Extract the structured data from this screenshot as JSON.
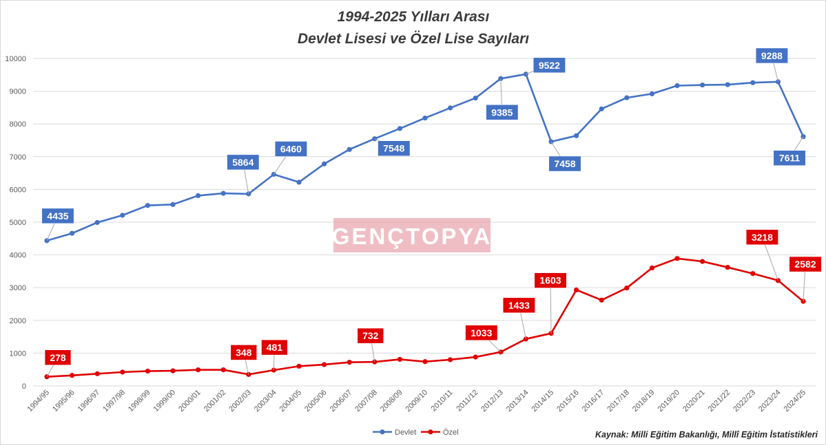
{
  "chart_data": {
    "type": "line",
    "title": [
      "1994-2025 Yılları Arası",
      "Devlet Lisesi ve Özel Lise Sayıları"
    ],
    "categories": [
      "1994/95",
      "1995/96",
      "1996/97",
      "1997/98",
      "1998/99",
      "1999/00",
      "2000/01",
      "2001/02",
      "2002/03",
      "2003/04",
      "2004/05",
      "2005/06",
      "2006/07",
      "2007/08",
      "2008/09",
      "2009/10",
      "2010/11",
      "2011/12",
      "2012/13",
      "2013/14",
      "2014/15",
      "2015/16",
      "2016/17",
      "2017/18",
      "2018/19",
      "2019/20",
      "2020/21",
      "2021/22",
      "2022/23",
      "2023/24",
      "2024/25"
    ],
    "ylim": [
      0,
      10000
    ],
    "yticks": [
      0,
      1000,
      2000,
      3000,
      4000,
      5000,
      6000,
      7000,
      8000,
      9000,
      10000
    ],
    "grid": true,
    "legend_position": "bottom",
    "series": [
      {
        "name": "Devlet",
        "color": "#4472c4",
        "values": [
          4435,
          4660,
          4990,
          5210,
          5510,
          5540,
          5810,
          5880,
          5864,
          6460,
          6220,
          6780,
          7220,
          7548,
          7860,
          8180,
          8490,
          8790,
          9385,
          9522,
          7458,
          7640,
          8460,
          8800,
          8920,
          9170,
          9190,
          9200,
          9260,
          9288,
          7611
        ]
      },
      {
        "name": "Özel",
        "color": "#e00000",
        "values": [
          278,
          320,
          370,
          420,
          450,
          460,
          490,
          490,
          348,
          481,
          600,
          650,
          720,
          732,
          810,
          740,
          800,
          880,
          1033,
          1433,
          1603,
          2930,
          2620,
          2990,
          3600,
          3890,
          3800,
          3620,
          3430,
          3218,
          2582
        ]
      }
    ],
    "annotations": [
      {
        "series": 0,
        "index": 0,
        "text": "4435"
      },
      {
        "series": 0,
        "index": 8,
        "text": "5864"
      },
      {
        "series": 0,
        "index": 9,
        "text": "6460"
      },
      {
        "series": 0,
        "index": 13,
        "text": "7548"
      },
      {
        "series": 0,
        "index": 18,
        "text": "9385"
      },
      {
        "series": 0,
        "index": 19,
        "text": "9522"
      },
      {
        "series": 0,
        "index": 20,
        "text": "7458"
      },
      {
        "series": 0,
        "index": 29,
        "text": "9288"
      },
      {
        "series": 0,
        "index": 30,
        "text": "7611"
      },
      {
        "series": 1,
        "index": 0,
        "text": "278"
      },
      {
        "series": 1,
        "index": 8,
        "text": "348"
      },
      {
        "series": 1,
        "index": 9,
        "text": "481"
      },
      {
        "series": 1,
        "index": 13,
        "text": "732"
      },
      {
        "series": 1,
        "index": 18,
        "text": "1033"
      },
      {
        "series": 1,
        "index": 19,
        "text": "1433"
      },
      {
        "series": 1,
        "index": 20,
        "text": "1603"
      },
      {
        "series": 1,
        "index": 29,
        "text": "3218"
      },
      {
        "series": 1,
        "index": 30,
        "text": "2582"
      }
    ]
  },
  "watermark": "GENÇTOPYA",
  "source": "Kaynak: Milli Eğitim Bakanlığı, Millî Eğitim İstatistikleri"
}
